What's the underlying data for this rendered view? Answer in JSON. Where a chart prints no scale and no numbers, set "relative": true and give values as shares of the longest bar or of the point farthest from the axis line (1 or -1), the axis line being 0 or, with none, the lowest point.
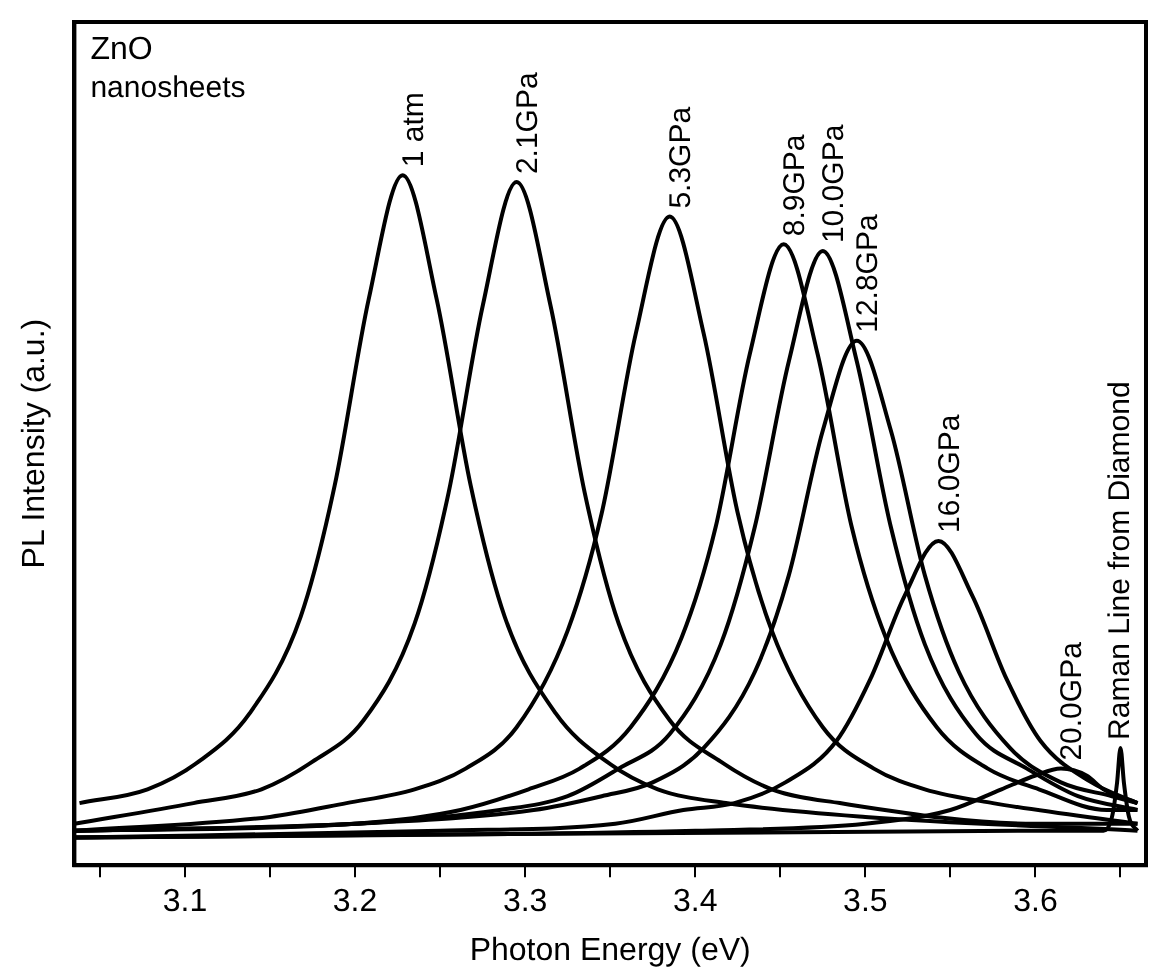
{
  "chart_data": {
    "type": "line",
    "relative": true,
    "xlabel": "Photon Energy (eV)",
    "ylabel": "PL Intensity (a.u.)",
    "xlim": [
      3.035,
      3.665
    ],
    "xticks": [
      {
        "value": 3.05,
        "label": null
      },
      3.1,
      {
        "value": 3.15,
        "label": null
      },
      3.2,
      {
        "value": 3.25,
        "label": null
      },
      3.3,
      {
        "value": 3.35,
        "label": null
      },
      3.4,
      {
        "value": 3.45,
        "label": null
      },
      3.5,
      {
        "value": 3.55,
        "label": null
      },
      3.6,
      {
        "value": 3.65,
        "label": null
      }
    ],
    "grid": false,
    "legend": false,
    "marker": "none",
    "line_style": "solid",
    "annotations": [
      "ZnO",
      "nanosheets",
      {
        "text": "Raman Line from Diamond",
        "x": 3.65,
        "y": 0.17
      }
    ],
    "series": [
      {
        "name": "1 atm",
        "color": "#000000",
        "x": [
          3.038,
          3.078,
          3.108,
          3.138,
          3.168,
          3.188,
          3.208,
          3.228,
          3.248,
          3.268,
          3.288,
          3.318,
          3.348,
          3.378,
          3.418,
          3.5,
          3.66
        ],
        "values": [
          0.09,
          0.11,
          0.15,
          0.22,
          0.36,
          0.55,
          0.82,
          1.0,
          0.82,
          0.55,
          0.36,
          0.22,
          0.15,
          0.11,
          0.09,
          0.07,
          0.05
        ]
      },
      {
        "name": "2.1GPa",
        "color": "#000000",
        "x": [
          3.035,
          3.105,
          3.145,
          3.175,
          3.205,
          3.235,
          3.255,
          3.275,
          3.295,
          3.315,
          3.335,
          3.355,
          3.385,
          3.415,
          3.445,
          3.485,
          3.6,
          3.66
        ],
        "values": [
          0.06,
          0.09,
          0.11,
          0.15,
          0.21,
          0.35,
          0.54,
          0.81,
          0.99,
          0.81,
          0.54,
          0.35,
          0.21,
          0.15,
          0.11,
          0.09,
          0.06,
          0.06
        ]
      },
      {
        "name": "5.3GPa",
        "color": "#000000",
        "x": [
          3.035,
          3.15,
          3.195,
          3.235,
          3.265,
          3.295,
          3.325,
          3.345,
          3.365,
          3.385,
          3.405,
          3.425,
          3.445,
          3.475,
          3.505,
          3.535,
          3.575,
          3.66
        ],
        "values": [
          0.05,
          0.07,
          0.09,
          0.11,
          0.14,
          0.2,
          0.34,
          0.51,
          0.77,
          0.94,
          0.77,
          0.51,
          0.34,
          0.2,
          0.14,
          0.11,
          0.09,
          0.06
        ]
      },
      {
        "name": "8.9GPa",
        "color": "#000000",
        "x": [
          3.035,
          3.2,
          3.262,
          3.302,
          3.332,
          3.362,
          3.392,
          3.412,
          3.432,
          3.452,
          3.472,
          3.492,
          3.512,
          3.542,
          3.572,
          3.602,
          3.642,
          3.66
        ],
        "values": [
          0.05,
          0.06,
          0.08,
          0.11,
          0.14,
          0.2,
          0.33,
          0.49,
          0.74,
          0.9,
          0.74,
          0.49,
          0.33,
          0.2,
          0.14,
          0.11,
          0.08,
          0.08
        ]
      },
      {
        "name": "10.0GPa",
        "color": "#000000",
        "x": [
          3.035,
          3.2,
          3.285,
          3.325,
          3.355,
          3.385,
          3.415,
          3.435,
          3.455,
          3.475,
          3.495,
          3.515,
          3.535,
          3.565,
          3.595,
          3.625,
          3.66
        ],
        "values": [
          0.05,
          0.06,
          0.08,
          0.1,
          0.14,
          0.19,
          0.32,
          0.49,
          0.73,
          0.89,
          0.73,
          0.49,
          0.32,
          0.19,
          0.14,
          0.1,
          0.08
        ]
      },
      {
        "name": "12.8GPa",
        "color": "#000000",
        "x": [
          3.035,
          3.2,
          3.305,
          3.345,
          3.375,
          3.405,
          3.435,
          3.455,
          3.475,
          3.495,
          3.515,
          3.535,
          3.555,
          3.585,
          3.615,
          3.645,
          3.66
        ],
        "values": [
          0.05,
          0.06,
          0.08,
          0.1,
          0.12,
          0.17,
          0.28,
          0.42,
          0.63,
          0.76,
          0.63,
          0.42,
          0.28,
          0.17,
          0.12,
          0.1,
          0.09
        ]
      },
      {
        "name": "16.0GPa",
        "color": "#000000",
        "x": [
          3.035,
          3.25,
          3.353,
          3.393,
          3.423,
          3.453,
          3.483,
          3.503,
          3.523,
          3.543,
          3.563,
          3.583,
          3.603,
          3.633,
          3.66
        ],
        "values": [
          0.04,
          0.05,
          0.06,
          0.08,
          0.09,
          0.12,
          0.18,
          0.27,
          0.39,
          0.47,
          0.39,
          0.27,
          0.18,
          0.12,
          0.09
        ]
      },
      {
        "name": "20.0GPa",
        "color": "#000000",
        "x": [
          3.035,
          3.4,
          3.5,
          3.55,
          3.58,
          3.6,
          3.615,
          3.63,
          3.64,
          3.66
        ],
        "values": [
          0.04,
          0.05,
          0.06,
          0.08,
          0.11,
          0.13,
          0.14,
          0.13,
          0.11,
          0.09
        ]
      },
      {
        "color": "#000000",
        "x": [
          3.035,
          3.6,
          3.64,
          3.645,
          3.648,
          3.65,
          3.652,
          3.655,
          3.66
        ],
        "values": [
          0.04,
          0.05,
          0.05,
          0.07,
          0.12,
          0.17,
          0.12,
          0.07,
          0.05
        ]
      }
    ]
  }
}
